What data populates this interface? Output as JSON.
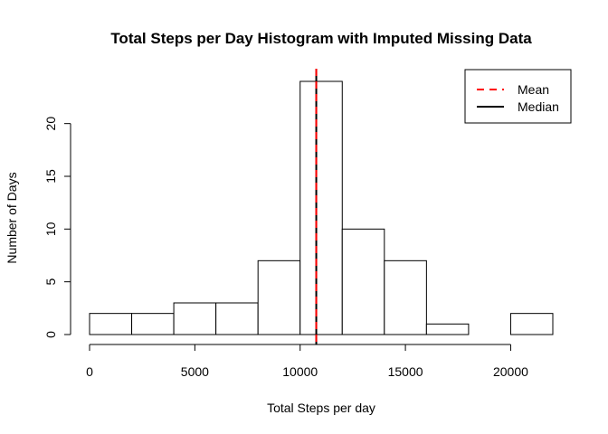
{
  "chart_data": {
    "type": "bar",
    "title": "Total Steps per Day Histogram with Imputed Missing Data",
    "xlabel": "Total Steps per day",
    "ylabel": "Number of Days",
    "bin_edges": [
      0,
      2000,
      4000,
      6000,
      8000,
      10000,
      12000,
      14000,
      16000,
      18000,
      20000,
      22000
    ],
    "values": [
      2,
      2,
      3,
      3,
      7,
      24,
      10,
      7,
      1,
      0,
      2
    ],
    "xlim": [
      0,
      22000
    ],
    "ylim": [
      0,
      24
    ],
    "x_ticks": [
      0,
      5000,
      10000,
      15000,
      20000
    ],
    "y_ticks": [
      0,
      5,
      10,
      15,
      20
    ],
    "bar_fill": "#ffffff",
    "bar_stroke": "#000000",
    "grid": false,
    "legend_position": "top-right",
    "mean": 10766,
    "median": 10766,
    "legend": [
      {
        "name": "Mean",
        "color": "#ff0000",
        "dash": true
      },
      {
        "name": "Median",
        "color": "#000000",
        "dash": false
      }
    ]
  }
}
